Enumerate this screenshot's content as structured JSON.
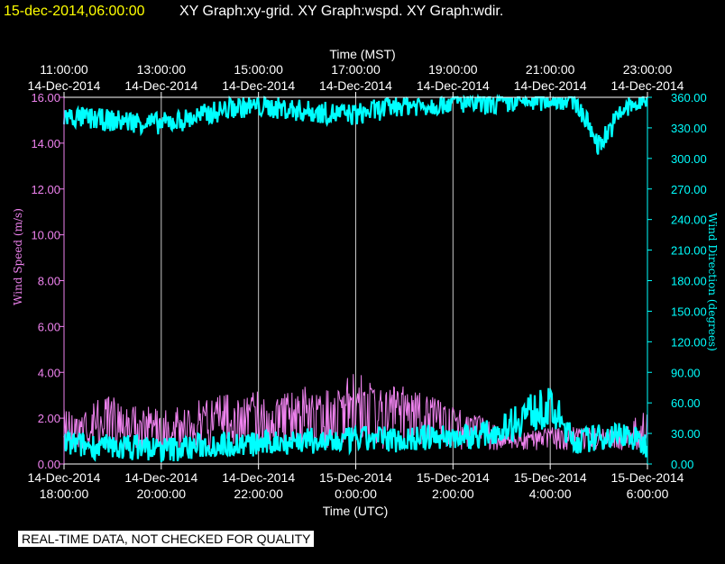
{
  "header": {
    "timestamp": "15-dec-2014,06:00:00",
    "graphs": "XY Graph:xy-grid.  XY Graph:wspd.  XY Graph:wdir."
  },
  "notice": "REAL-TIME DATA, NOT CHECKED FOR QUALITY",
  "colors": {
    "background": "#000000",
    "timestamp": "#ffff00",
    "text": "#ffffff",
    "wind_speed": "#ee82ee",
    "wind_direction": "#00ffff",
    "grid": "#c8c8c8"
  },
  "chart_data": {
    "type": "line",
    "top_axis": {
      "label": "Time (MST)",
      "ticks": [
        {
          "time": "11:00:00",
          "date": "14-Dec-2014"
        },
        {
          "time": "13:00:00",
          "date": "14-Dec-2014"
        },
        {
          "time": "15:00:00",
          "date": "14-Dec-2014"
        },
        {
          "time": "17:00:00",
          "date": "14-Dec-2014"
        },
        {
          "time": "19:00:00",
          "date": "14-Dec-2014"
        },
        {
          "time": "21:00:00",
          "date": "14-Dec-2014"
        },
        {
          "time": "23:00:00",
          "date": "14-Dec-2014"
        }
      ]
    },
    "bottom_axis": {
      "label": "Time (UTC)",
      "ticks": [
        {
          "date": "14-Dec-2014",
          "time": "18:00:00"
        },
        {
          "date": "14-Dec-2014",
          "time": "20:00:00"
        },
        {
          "date": "14-Dec-2014",
          "time": "22:00:00"
        },
        {
          "date": "15-Dec-2014",
          "time": "0:00:00"
        },
        {
          "date": "15-Dec-2014",
          "time": "2:00:00"
        },
        {
          "date": "15-Dec-2014",
          "time": "4:00:00"
        },
        {
          "date": "15-Dec-2014",
          "time": "6:00:00"
        }
      ]
    },
    "x_range_utc_hours": [
      18,
      30
    ],
    "left_axis": {
      "label": "Wind Speed (m/s)",
      "range": [
        0,
        16
      ],
      "ticks": [
        "0.00",
        "2.00",
        "4.00",
        "6.00",
        "8.00",
        "10.00",
        "12.00",
        "14.00",
        "16.00"
      ]
    },
    "right_axis": {
      "label": "Wind Direction (degrees)",
      "range": [
        0,
        360
      ],
      "ticks": [
        "0.00",
        "30.00",
        "60.00",
        "90.00",
        "120.00",
        "150.00",
        "180.00",
        "210.00",
        "240.00",
        "270.00",
        "300.00",
        "330.00",
        "360.00"
      ]
    },
    "grid": "vertical lines at each 2-hour tick",
    "series": [
      {
        "axis": "left",
        "color": "#ee82ee",
        "x_utc_hours": [
          18,
          18.5,
          19,
          19.5,
          20,
          20.5,
          21,
          21.5,
          22,
          22.5,
          23,
          23.5,
          24,
          24.5,
          25,
          25.5,
          26,
          26.5,
          27,
          27.5,
          28,
          28.5,
          29,
          29.5,
          30
        ],
        "mean": [
          1.6,
          1.7,
          1.9,
          1.8,
          1.6,
          1.8,
          2.1,
          2.2,
          2.3,
          2.3,
          2.4,
          2.3,
          2.6,
          2.7,
          2.6,
          2.4,
          2.0,
          1.6,
          1.2,
          1.1,
          1.3,
          1.3,
          1.2,
          1.2,
          1.3
        ],
        "peak": [
          2.5,
          2.8,
          3.0,
          2.7,
          2.4,
          2.6,
          3.0,
          3.2,
          3.3,
          3.2,
          3.4,
          3.2,
          4.1,
          3.6,
          3.4,
          3.0,
          2.5,
          2.2,
          1.6,
          1.4,
          1.6,
          1.7,
          1.6,
          1.5,
          2.6
        ]
      },
      {
        "axis": "right",
        "color": "#00ffff",
        "x_utc_hours": [
          18,
          18.5,
          19,
          19.5,
          20,
          20.5,
          21,
          21.5,
          22,
          22.5,
          23,
          23.5,
          24,
          24.5,
          25,
          25.5,
          26,
          26.5,
          27,
          27.5,
          28,
          28.5,
          29,
          29.5,
          30
        ],
        "upper_band_mean": [
          340,
          338,
          336,
          335,
          333,
          337,
          343,
          349,
          350,
          348,
          345,
          343,
          342,
          347,
          352,
          351,
          355,
          352,
          353,
          355,
          357,
          357,
          312,
          347,
          356
        ],
        "lower_band_mean": [
          20,
          18,
          16,
          17,
          14,
          16,
          19,
          20,
          19,
          22,
          23,
          21,
          24,
          25,
          24,
          26,
          27,
          28,
          34,
          50,
          55,
          22,
          26,
          30,
          18
        ]
      }
    ]
  }
}
